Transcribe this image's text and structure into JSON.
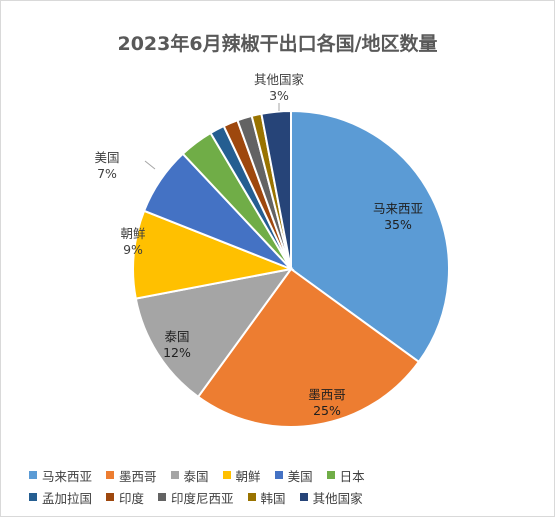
{
  "chart_data": {
    "type": "pie",
    "title": "2023年6月辣椒干出口各国/地区数量",
    "slices": [
      {
        "name": "马来西亚",
        "value": 35,
        "label": "35%",
        "color": "#5b9bd5"
      },
      {
        "name": "墨西哥",
        "value": 25,
        "label": "25%",
        "color": "#ed7d31"
      },
      {
        "name": "泰国",
        "value": 12,
        "label": "12%",
        "color": "#a5a5a5"
      },
      {
        "name": "朝鲜",
        "value": 9,
        "label": "9%",
        "color": "#ffc000"
      },
      {
        "name": "美国",
        "value": 7,
        "label": "7%",
        "color": "#4472c4"
      },
      {
        "name": "日本",
        "value": 3.5,
        "label": "",
        "color": "#70ad47"
      },
      {
        "name": "孟加拉国",
        "value": 1.5,
        "label": "",
        "color": "#255e91"
      },
      {
        "name": "印度",
        "value": 1.5,
        "label": "",
        "color": "#9e480e"
      },
      {
        "name": "印度尼西亚",
        "value": 1.5,
        "label": "",
        "color": "#636363"
      },
      {
        "name": "韩国",
        "value": 1,
        "label": "",
        "color": "#997300"
      },
      {
        "name": "其他国家",
        "value": 3,
        "label": "3%",
        "color": "#264478"
      }
    ],
    "legend_position": "bottom"
  }
}
